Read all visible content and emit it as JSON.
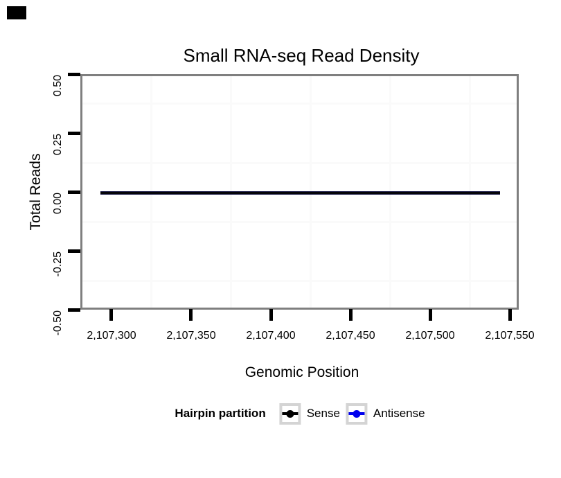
{
  "chart_data": {
    "type": "line",
    "title": "Small RNA-seq Read Density",
    "xlabel": "Genomic Position",
    "ylabel": "Total Reads",
    "ylim": [
      -0.5,
      0.5
    ],
    "x_range_shown": [
      2107281,
      2107555
    ],
    "x_tick_values": [
      2107300,
      2107350,
      2107400,
      2107450,
      2107500,
      2107550
    ],
    "x_tick_labels": [
      "2,107,300",
      "2,107,350",
      "2,107,400",
      "2,107,450",
      "2,107,500",
      "2,107,550"
    ],
    "y_tick_values": [
      0.5,
      0.25,
      0.0,
      -0.25,
      -0.5
    ],
    "y_tick_labels": [
      "0.50",
      "0.25",
      "0.00",
      "-0.25",
      "-0.50"
    ],
    "grid": "minor gridlines only, very light grey on white panel",
    "legend": {
      "title": "Hairpin partition",
      "position": "bottom",
      "entries": [
        {
          "label": "Sense",
          "color": "#000000",
          "key_glyph": "line with point"
        },
        {
          "label": "Antisense",
          "color": "#0000EE",
          "key_glyph": "line with point"
        }
      ]
    },
    "series": [
      {
        "name": "Sense",
        "color": "#000000",
        "x": [
          2107293,
          2107544
        ],
        "y": [
          0,
          0
        ]
      },
      {
        "name": "Antisense",
        "color": "#0000EE",
        "x": [
          2107293,
          2107544
        ],
        "y": [
          0,
          0
        ]
      }
    ],
    "annotation": "Both series are constant at 0 reads and overlap as one dark line at y = 0.00"
  },
  "colors": {
    "background": "#FFFFFF",
    "panel_border": "#7F7F7F",
    "axis_tick": "#000000",
    "minor_grid": "#FAFAFA",
    "legend_key_border": "#D4D4D4",
    "sense": "#000000",
    "antisense": "#0000EE",
    "overlap_line_edge": "#2E2E6D",
    "corner_mark": "#000000"
  }
}
